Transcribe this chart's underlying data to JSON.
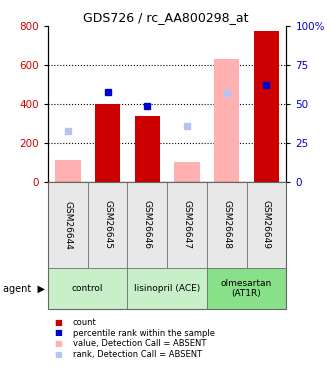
{
  "title": "GDS726 / rc_AA800298_at",
  "samples": [
    "GSM26644",
    "GSM26645",
    "GSM26646",
    "GSM26647",
    "GSM26648",
    "GSM26649"
  ],
  "groups": [
    {
      "label": "control",
      "span": [
        0,
        1
      ],
      "color": "#c8f0c8"
    },
    {
      "label": "lisinopril (ACE)",
      "span": [
        2,
        3
      ],
      "color": "#c8f0c8"
    },
    {
      "label": "olmesartan\n(AT1R)",
      "span": [
        4,
        5
      ],
      "color": "#90e890"
    }
  ],
  "count_present": [
    null,
    400,
    340,
    null,
    null,
    775
  ],
  "count_absent": [
    110,
    null,
    null,
    100,
    630,
    null
  ],
  "rank_present": [
    null,
    465,
    395,
    null,
    null,
    495
  ],
  "rank_absent": [
    260,
    null,
    null,
    285,
    455,
    null
  ],
  "ylim_left": [
    0,
    800
  ],
  "ylim_right": [
    0,
    100
  ],
  "yticks_left": [
    0,
    200,
    400,
    600,
    800
  ],
  "yticks_right": [
    0,
    25,
    50,
    75,
    100
  ],
  "ytick_labels_right": [
    "0",
    "25",
    "50",
    "75",
    "100%"
  ],
  "bar_width": 0.4,
  "left_axis_color": "#cc0000",
  "right_axis_color": "#0000cc",
  "absent_bar_color": "#ffb0b0",
  "absent_rank_color": "#b8c4f0",
  "present_bar_color": "#cc0000",
  "present_rank_color": "#0000cc",
  "bg_color": "#e8e8e8",
  "plot_bg": "#ffffff",
  "group_color_light": "#c8f0c8",
  "group_color_dark": "#88e088"
}
